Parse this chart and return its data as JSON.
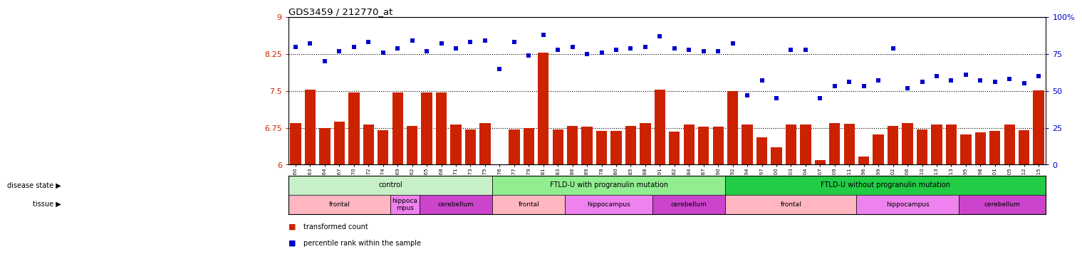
{
  "title": "GDS3459 / 212770_at",
  "bar_values": [
    6.85,
    7.52,
    6.75,
    6.87,
    7.47,
    6.82,
    6.7,
    7.47,
    6.79,
    7.46,
    7.47,
    6.82,
    6.71,
    6.84,
    6.01,
    6.72,
    6.75,
    8.27,
    6.72,
    6.79,
    6.77,
    6.68,
    6.69,
    6.79,
    6.85,
    7.52,
    6.67,
    6.81,
    6.77,
    6.77,
    7.5,
    6.81,
    6.55,
    6.35,
    6.82,
    6.81,
    6.09,
    6.84,
    6.83,
    6.16,
    6.62,
    6.78,
    6.84,
    6.72,
    6.82,
    6.81,
    6.62,
    6.65,
    6.68,
    6.81,
    6.7,
    7.51
  ],
  "dot_values": [
    80,
    82,
    70,
    77,
    80,
    83,
    76,
    79,
    84,
    77,
    82,
    79,
    83,
    84,
    65,
    83,
    74,
    88,
    78,
    80,
    75,
    76,
    78,
    79,
    80,
    87,
    79,
    78,
    77,
    77,
    82,
    47,
    57,
    45,
    78,
    78,
    45,
    53,
    56,
    53,
    57,
    79,
    52,
    56,
    60,
    57,
    61,
    57,
    56,
    58,
    55,
    60
  ],
  "labels": [
    "GSM329660",
    "GSM329663",
    "GSM329664",
    "GSM329667",
    "GSM329670",
    "GSM329672",
    "GSM329674",
    "GSM329669",
    "GSM329662",
    "GSM329665",
    "GSM329668",
    "GSM329671",
    "GSM329673",
    "GSM329675",
    "GSM329676",
    "GSM329677",
    "GSM329679",
    "GSM329681",
    "GSM329683",
    "GSM329686",
    "GSM329689",
    "GSM329678",
    "GSM329680",
    "GSM329685",
    "GSM329688",
    "GSM329691",
    "GSM329682",
    "GSM329684",
    "GSM329687",
    "GSM329690",
    "GSM329692",
    "GSM329694",
    "GSM329697",
    "GSM329700",
    "GSM329703",
    "GSM329704",
    "GSM329707",
    "GSM329709",
    "GSM329711",
    "GSM329696",
    "GSM329699",
    "GSM329702",
    "GSM329706",
    "GSM329710",
    "GSM329713",
    "GSM329713",
    "GSM329695",
    "GSM329698",
    "GSM329701",
    "GSM329705",
    "GSM329712",
    "GSM329715"
  ],
  "disease_groups": [
    {
      "label": "control",
      "start": 0,
      "end": 14,
      "color": "#c8f0c8"
    },
    {
      "label": "FTLD-U with progranulin mutation",
      "start": 14,
      "end": 30,
      "color": "#90ee90"
    },
    {
      "label": "FTLD-U without progranulin mutation",
      "start": 30,
      "end": 52,
      "color": "#22cc44"
    }
  ],
  "tissue_groups": [
    {
      "label": "frontal",
      "start": 0,
      "end": 7,
      "color": "#ffb6c1"
    },
    {
      "label": "hippoca\nmpus",
      "start": 7,
      "end": 9,
      "color": "#ee82ee"
    },
    {
      "label": "cerebellum",
      "start": 9,
      "end": 14,
      "color": "#cc44cc"
    },
    {
      "label": "frontal",
      "start": 14,
      "end": 19,
      "color": "#ffb6c1"
    },
    {
      "label": "hippocampus",
      "start": 19,
      "end": 25,
      "color": "#ee82ee"
    },
    {
      "label": "cerebellum",
      "start": 25,
      "end": 30,
      "color": "#cc44cc"
    },
    {
      "label": "frontal",
      "start": 30,
      "end": 39,
      "color": "#ffb6c1"
    },
    {
      "label": "hippocampus",
      "start": 39,
      "end": 46,
      "color": "#ee82ee"
    },
    {
      "label": "cerebellum",
      "start": 46,
      "end": 52,
      "color": "#cc44cc"
    }
  ],
  "ylim_left": [
    6,
    9
  ],
  "ylim_right": [
    0,
    100
  ],
  "yticks_left": [
    6,
    6.75,
    7.5,
    8.25,
    9
  ],
  "yticks_right": [
    0,
    25,
    50,
    75,
    100
  ],
  "hlines": [
    6.75,
    7.5,
    8.25
  ],
  "bar_color": "#cc2200",
  "dot_color": "#0000cc",
  "n": 52
}
